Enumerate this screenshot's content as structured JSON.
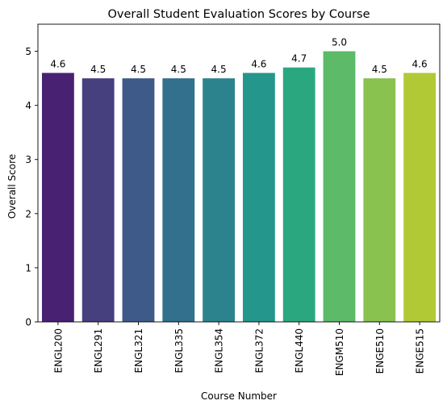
{
  "chart_data": {
    "type": "bar",
    "title": "Overall Student Evaluation Scores by Course",
    "xlabel": "Course Number",
    "ylabel": "Overall Score",
    "categories": [
      "ENGL200",
      "ENGL291",
      "ENGL321",
      "ENGL335",
      "ENGL354",
      "ENGL372",
      "ENGL440",
      "ENGM510",
      "ENGE510",
      "ENGE515"
    ],
    "values": [
      4.6,
      4.5,
      4.5,
      4.5,
      4.5,
      4.6,
      4.7,
      5.0,
      4.5,
      4.6
    ],
    "data_labels": [
      "4.6",
      "4.5",
      "4.5",
      "4.5",
      "4.5",
      "4.6",
      "4.7",
      "5.0",
      "4.5",
      "4.6"
    ],
    "bar_colors": [
      "#482173",
      "#46407f",
      "#3e5a89",
      "#33708d",
      "#2c838d",
      "#25968b",
      "#2ba780",
      "#5cba68",
      "#89c24f",
      "#b1c935"
    ],
    "ylim": [
      0,
      5.5
    ],
    "yticks": [
      0,
      1,
      2,
      3,
      4,
      5
    ],
    "grid": false,
    "legend": "none"
  }
}
